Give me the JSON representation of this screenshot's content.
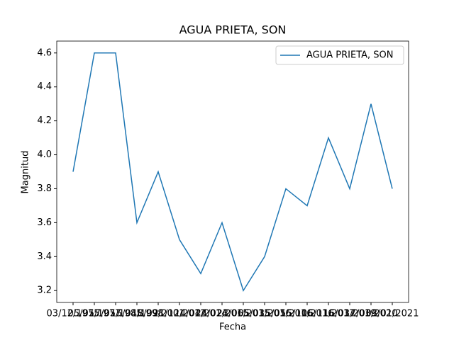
{
  "chart_data": {
    "type": "line",
    "title": "AGUA PRIETA, SON",
    "x_label": "Fecha",
    "y_label": "Magnitud",
    "categories": [
      "03/12/1975",
      "05/05/1977",
      "17/05/1985",
      "15/04/1998",
      "18/09/2001",
      "21/12/2012",
      "14/04/2014",
      "24/02/2015",
      "23/06/2015",
      "05/03/2016",
      "15/05/2016",
      "15/10/2016",
      "16/11/2017",
      "16/03/2019",
      "17/03/2020",
      "03/01/2021"
    ],
    "series": [
      {
        "name": "AGUA PRIETA, SON",
        "color": "#1f77b4",
        "values": [
          3.9,
          4.6,
          4.6,
          3.6,
          3.9,
          3.5,
          3.3,
          3.6,
          3.2,
          3.4,
          3.8,
          3.7,
          4.1,
          3.8,
          4.3,
          3.8
        ]
      }
    ],
    "ylim": [
      3.13,
      4.67
    ],
    "yticks": [
      {
        "value": 3.2,
        "label": "3.2"
      },
      {
        "value": 3.4,
        "label": "3.4"
      },
      {
        "value": 3.6,
        "label": "3.6"
      },
      {
        "value": 3.8,
        "label": "3.8"
      },
      {
        "value": 4.0,
        "label": "4.0"
      },
      {
        "value": 4.2,
        "label": "4.2"
      },
      {
        "value": 4.4,
        "label": "4.4"
      },
      {
        "value": 4.6,
        "label": "4.6"
      }
    ],
    "legend": "upper right",
    "grid": false
  }
}
